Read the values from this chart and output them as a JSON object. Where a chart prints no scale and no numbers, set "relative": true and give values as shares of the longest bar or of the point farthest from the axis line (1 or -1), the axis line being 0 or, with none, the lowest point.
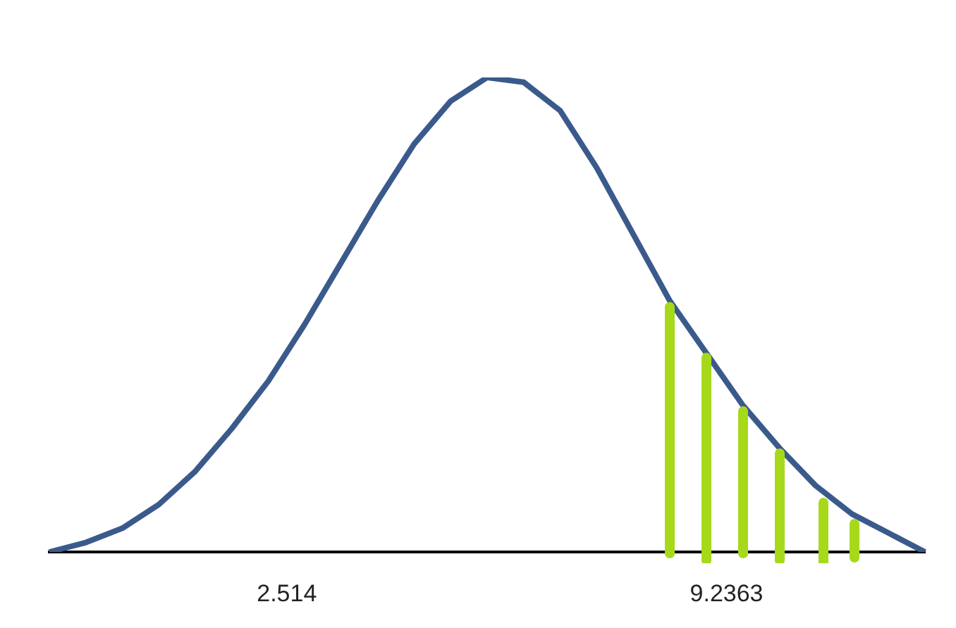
{
  "chart_data": {
    "type": "line",
    "relative": true,
    "categories": [
      null,
      null,
      null,
      null,
      null,
      null,
      null,
      null,
      null,
      null,
      null,
      null,
      null,
      null,
      null,
      null,
      null,
      null,
      null,
      null,
      null,
      null,
      null,
      null,
      null
    ],
    "series": [
      {
        "color": "#3b5a8c",
        "values": [
          0,
          0.02,
          0.05,
          0.1,
          0.17,
          0.26,
          0.36,
          0.48,
          0.61,
          0.74,
          0.86,
          0.95,
          1.0,
          0.99,
          0.93,
          0.81,
          0.67,
          0.53,
          0.42,
          0.31,
          0.22,
          0.14,
          0.08,
          0.04,
          0
        ]
      }
    ],
    "annotations": [
      "2.514",
      "9.2363"
    ]
  }
}
